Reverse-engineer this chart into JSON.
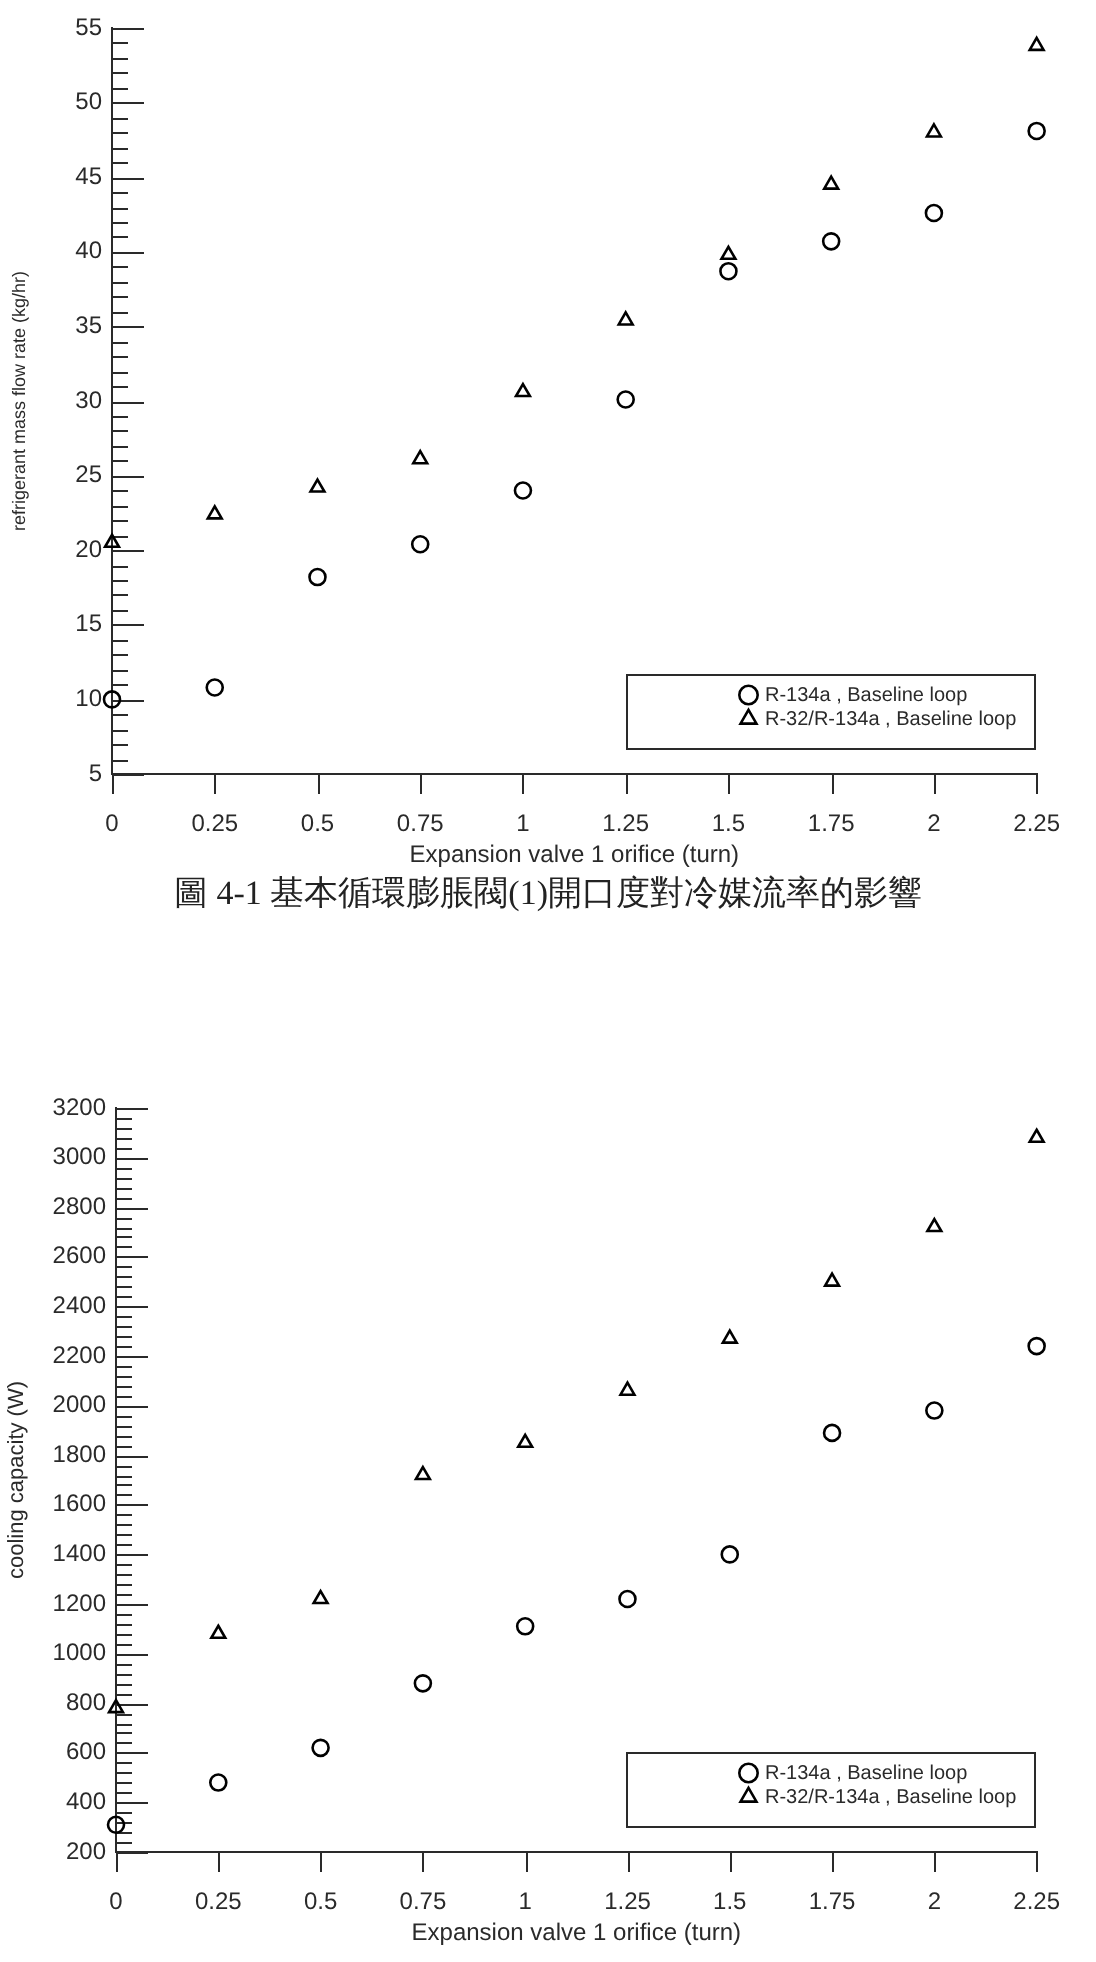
{
  "chart_data": [
    {
      "type": "scatter",
      "xlabel": "Expansion valve 1 orifice (turn)",
      "ylabel": "refrigerant mass flow rate (kg/hr)",
      "x": [
        0,
        0.25,
        0.5,
        0.75,
        1,
        1.25,
        1.5,
        1.75,
        2,
        2.25
      ],
      "series": [
        {
          "name": "R-134a , Baseline loop",
          "color": "#000000",
          "marker": "circle",
          "values": [
            10.0,
            10.8,
            18.2,
            20.4,
            24.0,
            30.1,
            38.7,
            40.7,
            42.6,
            48.1
          ]
        },
        {
          "name": "R-32/R-134a , Baseline loop",
          "color": "#000000",
          "marker": "triangle",
          "values": [
            20.5,
            22.4,
            24.2,
            26.1,
            30.6,
            35.4,
            39.8,
            44.5,
            48.0,
            53.8
          ]
        }
      ],
      "xlim": [
        0,
        2.25
      ],
      "xticks": [
        0,
        0.25,
        0.5,
        0.75,
        1,
        1.25,
        1.5,
        1.75,
        2,
        2.25
      ],
      "ylim": [
        5,
        55
      ],
      "yticks": [
        5,
        {
          "value": 6,
          "label": null
        },
        {
          "value": 7,
          "label": null
        },
        {
          "value": 8,
          "label": null
        },
        {
          "value": 9,
          "label": null
        },
        10,
        {
          "value": 11,
          "label": null
        },
        {
          "value": 12,
          "label": null
        },
        {
          "value": 13,
          "label": null
        },
        {
          "value": 14,
          "label": null
        },
        15,
        {
          "value": 16,
          "label": null
        },
        {
          "value": 17,
          "label": null
        },
        {
          "value": 18,
          "label": null
        },
        {
          "value": 19,
          "label": null
        },
        20,
        {
          "value": 21,
          "label": null
        },
        {
          "value": 22,
          "label": null
        },
        {
          "value": 23,
          "label": null
        },
        {
          "value": 24,
          "label": null
        },
        25,
        {
          "value": 26,
          "label": null
        },
        {
          "value": 27,
          "label": null
        },
        {
          "value": 28,
          "label": null
        },
        {
          "value": 29,
          "label": null
        },
        30,
        {
          "value": 31,
          "label": null
        },
        {
          "value": 32,
          "label": null
        },
        {
          "value": 33,
          "label": null
        },
        {
          "value": 34,
          "label": null
        },
        35,
        {
          "value": 36,
          "label": null
        },
        {
          "value": 37,
          "label": null
        },
        {
          "value": 38,
          "label": null
        },
        {
          "value": 39,
          "label": null
        },
        40,
        {
          "value": 41,
          "label": null
        },
        {
          "value": 42,
          "label": null
        },
        {
          "value": 43,
          "label": null
        },
        {
          "value": 44,
          "label": null
        },
        45,
        {
          "value": 46,
          "label": null
        },
        {
          "value": 47,
          "label": null
        },
        {
          "value": 48,
          "label": null
        },
        {
          "value": 49,
          "label": null
        },
        50,
        {
          "value": 51,
          "label": null
        },
        {
          "value": 52,
          "label": null
        },
        {
          "value": 53,
          "label": null
        },
        {
          "value": 54,
          "label": null
        },
        55
      ],
      "legend": "bottom right",
      "annotations": [
        "圖 4-1 基本循環膨脹閥(1)開口度對冷媒流率的影響"
      ]
    },
    {
      "type": "scatter",
      "xlabel": "Expansion valve 1 orifice (turn)",
      "ylabel": "cooling capacity (W)",
      "x": [
        0,
        0.25,
        0.5,
        0.75,
        1,
        1.25,
        1.5,
        1.75,
        2,
        2.25
      ],
      "series": [
        {
          "name": "R-134a , Baseline loop",
          "color": "#000000",
          "marker": "circle",
          "values": [
            310,
            480,
            620,
            880,
            1110,
            1220,
            1400,
            1890,
            1980,
            2240
          ]
        },
        {
          "name": "R-32/R-134a , Baseline loop",
          "color": "#000000",
          "marker": "triangle",
          "values": [
            780,
            1080,
            1220,
            1720,
            1850,
            2060,
            2270,
            2500,
            2720,
            3080
          ]
        }
      ],
      "xlim": [
        0,
        2.25
      ],
      "xticks": [
        0,
        0.25,
        0.5,
        0.75,
        1,
        1.25,
        1.5,
        1.75,
        2,
        2.25
      ],
      "ylim": [
        200,
        3200
      ],
      "yticks": [
        200,
        {
          "value": 240,
          "label": null
        },
        {
          "value": 280,
          "label": null
        },
        {
          "value": 320,
          "label": null
        },
        {
          "value": 360,
          "label": null
        },
        400,
        {
          "value": 440,
          "label": null
        },
        {
          "value": 480,
          "label": null
        },
        {
          "value": 520,
          "label": null
        },
        {
          "value": 560,
          "label": null
        },
        600,
        {
          "value": 640,
          "label": null
        },
        {
          "value": 680,
          "label": null
        },
        {
          "value": 720,
          "label": null
        },
        {
          "value": 760,
          "label": null
        },
        800,
        {
          "value": 840,
          "label": null
        },
        {
          "value": 880,
          "label": null
        },
        {
          "value": 920,
          "label": null
        },
        {
          "value": 960,
          "label": null
        },
        1000,
        {
          "value": 1040,
          "label": null
        },
        {
          "value": 1080,
          "label": null
        },
        {
          "value": 1120,
          "label": null
        },
        {
          "value": 1160,
          "label": null
        },
        1200,
        {
          "value": 1240,
          "label": null
        },
        {
          "value": 1280,
          "label": null
        },
        {
          "value": 1320,
          "label": null
        },
        {
          "value": 1360,
          "label": null
        },
        1400,
        {
          "value": 1440,
          "label": null
        },
        {
          "value": 1480,
          "label": null
        },
        {
          "value": 1520,
          "label": null
        },
        {
          "value": 1560,
          "label": null
        },
        1600,
        {
          "value": 1640,
          "label": null
        },
        {
          "value": 1680,
          "label": null
        },
        {
          "value": 1720,
          "label": null
        },
        {
          "value": 1760,
          "label": null
        },
        1800,
        {
          "value": 1840,
          "label": null
        },
        {
          "value": 1880,
          "label": null
        },
        {
          "value": 1920,
          "label": null
        },
        {
          "value": 1960,
          "label": null
        },
        2000,
        {
          "value": 2040,
          "label": null
        },
        {
          "value": 2080,
          "label": null
        },
        {
          "value": 2120,
          "label": null
        },
        {
          "value": 2160,
          "label": null
        },
        2200,
        {
          "value": 2240,
          "label": null
        },
        {
          "value": 2280,
          "label": null
        },
        {
          "value": 2320,
          "label": null
        },
        {
          "value": 2360,
          "label": null
        },
        2400,
        {
          "value": 2440,
          "label": null
        },
        {
          "value": 2480,
          "label": null
        },
        {
          "value": 2520,
          "label": null
        },
        {
          "value": 2560,
          "label": null
        },
        2600,
        {
          "value": 2640,
          "label": null
        },
        {
          "value": 2680,
          "label": null
        },
        {
          "value": 2720,
          "label": null
        },
        {
          "value": 2760,
          "label": null
        },
        2800,
        {
          "value": 2840,
          "label": null
        },
        {
          "value": 2880,
          "label": null
        },
        {
          "value": 2920,
          "label": null
        },
        {
          "value": 2960,
          "label": null
        },
        3000,
        {
          "value": 3040,
          "label": null
        },
        {
          "value": 3080,
          "label": null
        },
        {
          "value": 3120,
          "label": null
        },
        {
          "value": 3160,
          "label": null
        },
        3200
      ],
      "legend": "bottom right"
    }
  ]
}
